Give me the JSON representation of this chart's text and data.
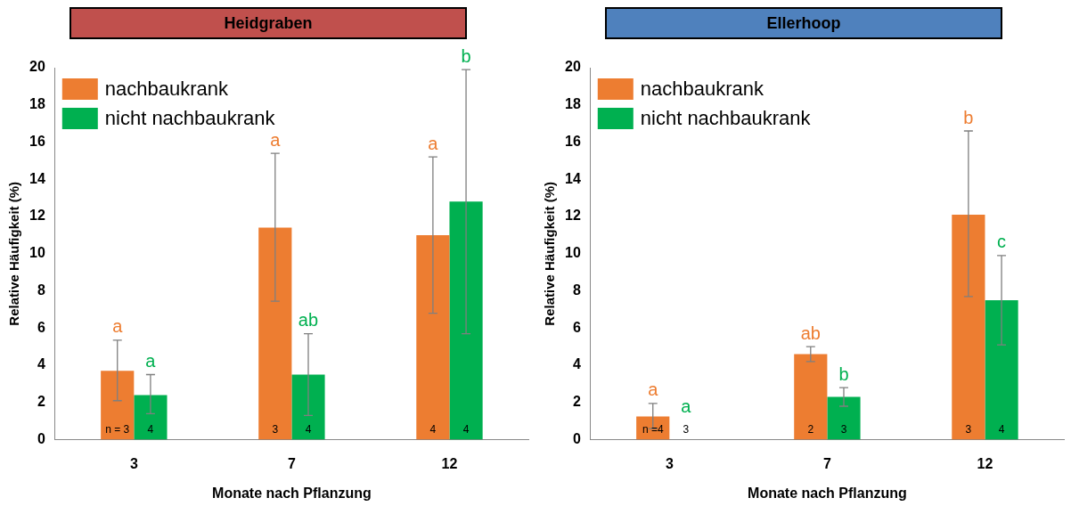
{
  "chart_data": [
    {
      "type": "bar",
      "title": "Heidgraben",
      "xlabel": "Monate nach Pflanzung",
      "ylabel": "Relative Häufigkeit (%)",
      "categories": [
        "3",
        "7",
        "12"
      ],
      "ylim": [
        0,
        20
      ],
      "yticks": [
        0,
        2,
        4,
        6,
        8,
        10,
        12,
        14,
        16,
        18,
        20
      ],
      "grid": false,
      "legend": "top left",
      "series": [
        {
          "name": "nachbaukrank",
          "color": "#ed7d31",
          "values": [
            3.7,
            11.4,
            11.0
          ],
          "errors": [
            [
              2.1,
              5.35
            ],
            [
              7.45,
              15.4
            ],
            [
              6.8,
              15.2
            ]
          ]
        },
        {
          "name": "nicht nachbaukrank",
          "color": "#00b050",
          "values": [
            2.4,
            3.5,
            12.8
          ],
          "errors": [
            [
              1.4,
              3.5
            ],
            [
              1.3,
              5.7
            ],
            [
              5.7,
              19.9
            ]
          ]
        }
      ],
      "annotations": [
        "a",
        "a",
        "a",
        "ab",
        "a",
        "b",
        "n = 3",
        "4",
        "3",
        "4",
        "4",
        "4"
      ]
    },
    {
      "type": "bar",
      "title": "Ellerhoop",
      "xlabel": "Monate nach Pflanzung",
      "ylabel": "Relative Häufigkeit (%)",
      "categories": [
        "3",
        "7",
        "12"
      ],
      "ylim": [
        0,
        20
      ],
      "yticks": [
        0,
        2,
        4,
        6,
        8,
        10,
        12,
        14,
        16,
        18,
        20
      ],
      "grid": false,
      "legend": "top left",
      "series": [
        {
          "name": "nachbaukrank",
          "color": "#ed7d31",
          "values": [
            1.25,
            4.6,
            12.1
          ],
          "errors": [
            [
              0.6,
              1.95
            ],
            [
              4.2,
              5.0
            ],
            [
              7.7,
              16.6
            ]
          ]
        },
        {
          "name": "nicht nachbaukrank",
          "color": "#00b050",
          "values": [
            0,
            2.3,
            7.5
          ],
          "errors": [
            null,
            [
              1.8,
              2.8
            ],
            [
              5.1,
              9.9
            ]
          ]
        }
      ],
      "annotations": [
        "a",
        "a",
        "ab",
        "b",
        "b",
        "c",
        "n =4",
        "3",
        "2",
        "3",
        "3",
        "4"
      ]
    }
  ]
}
